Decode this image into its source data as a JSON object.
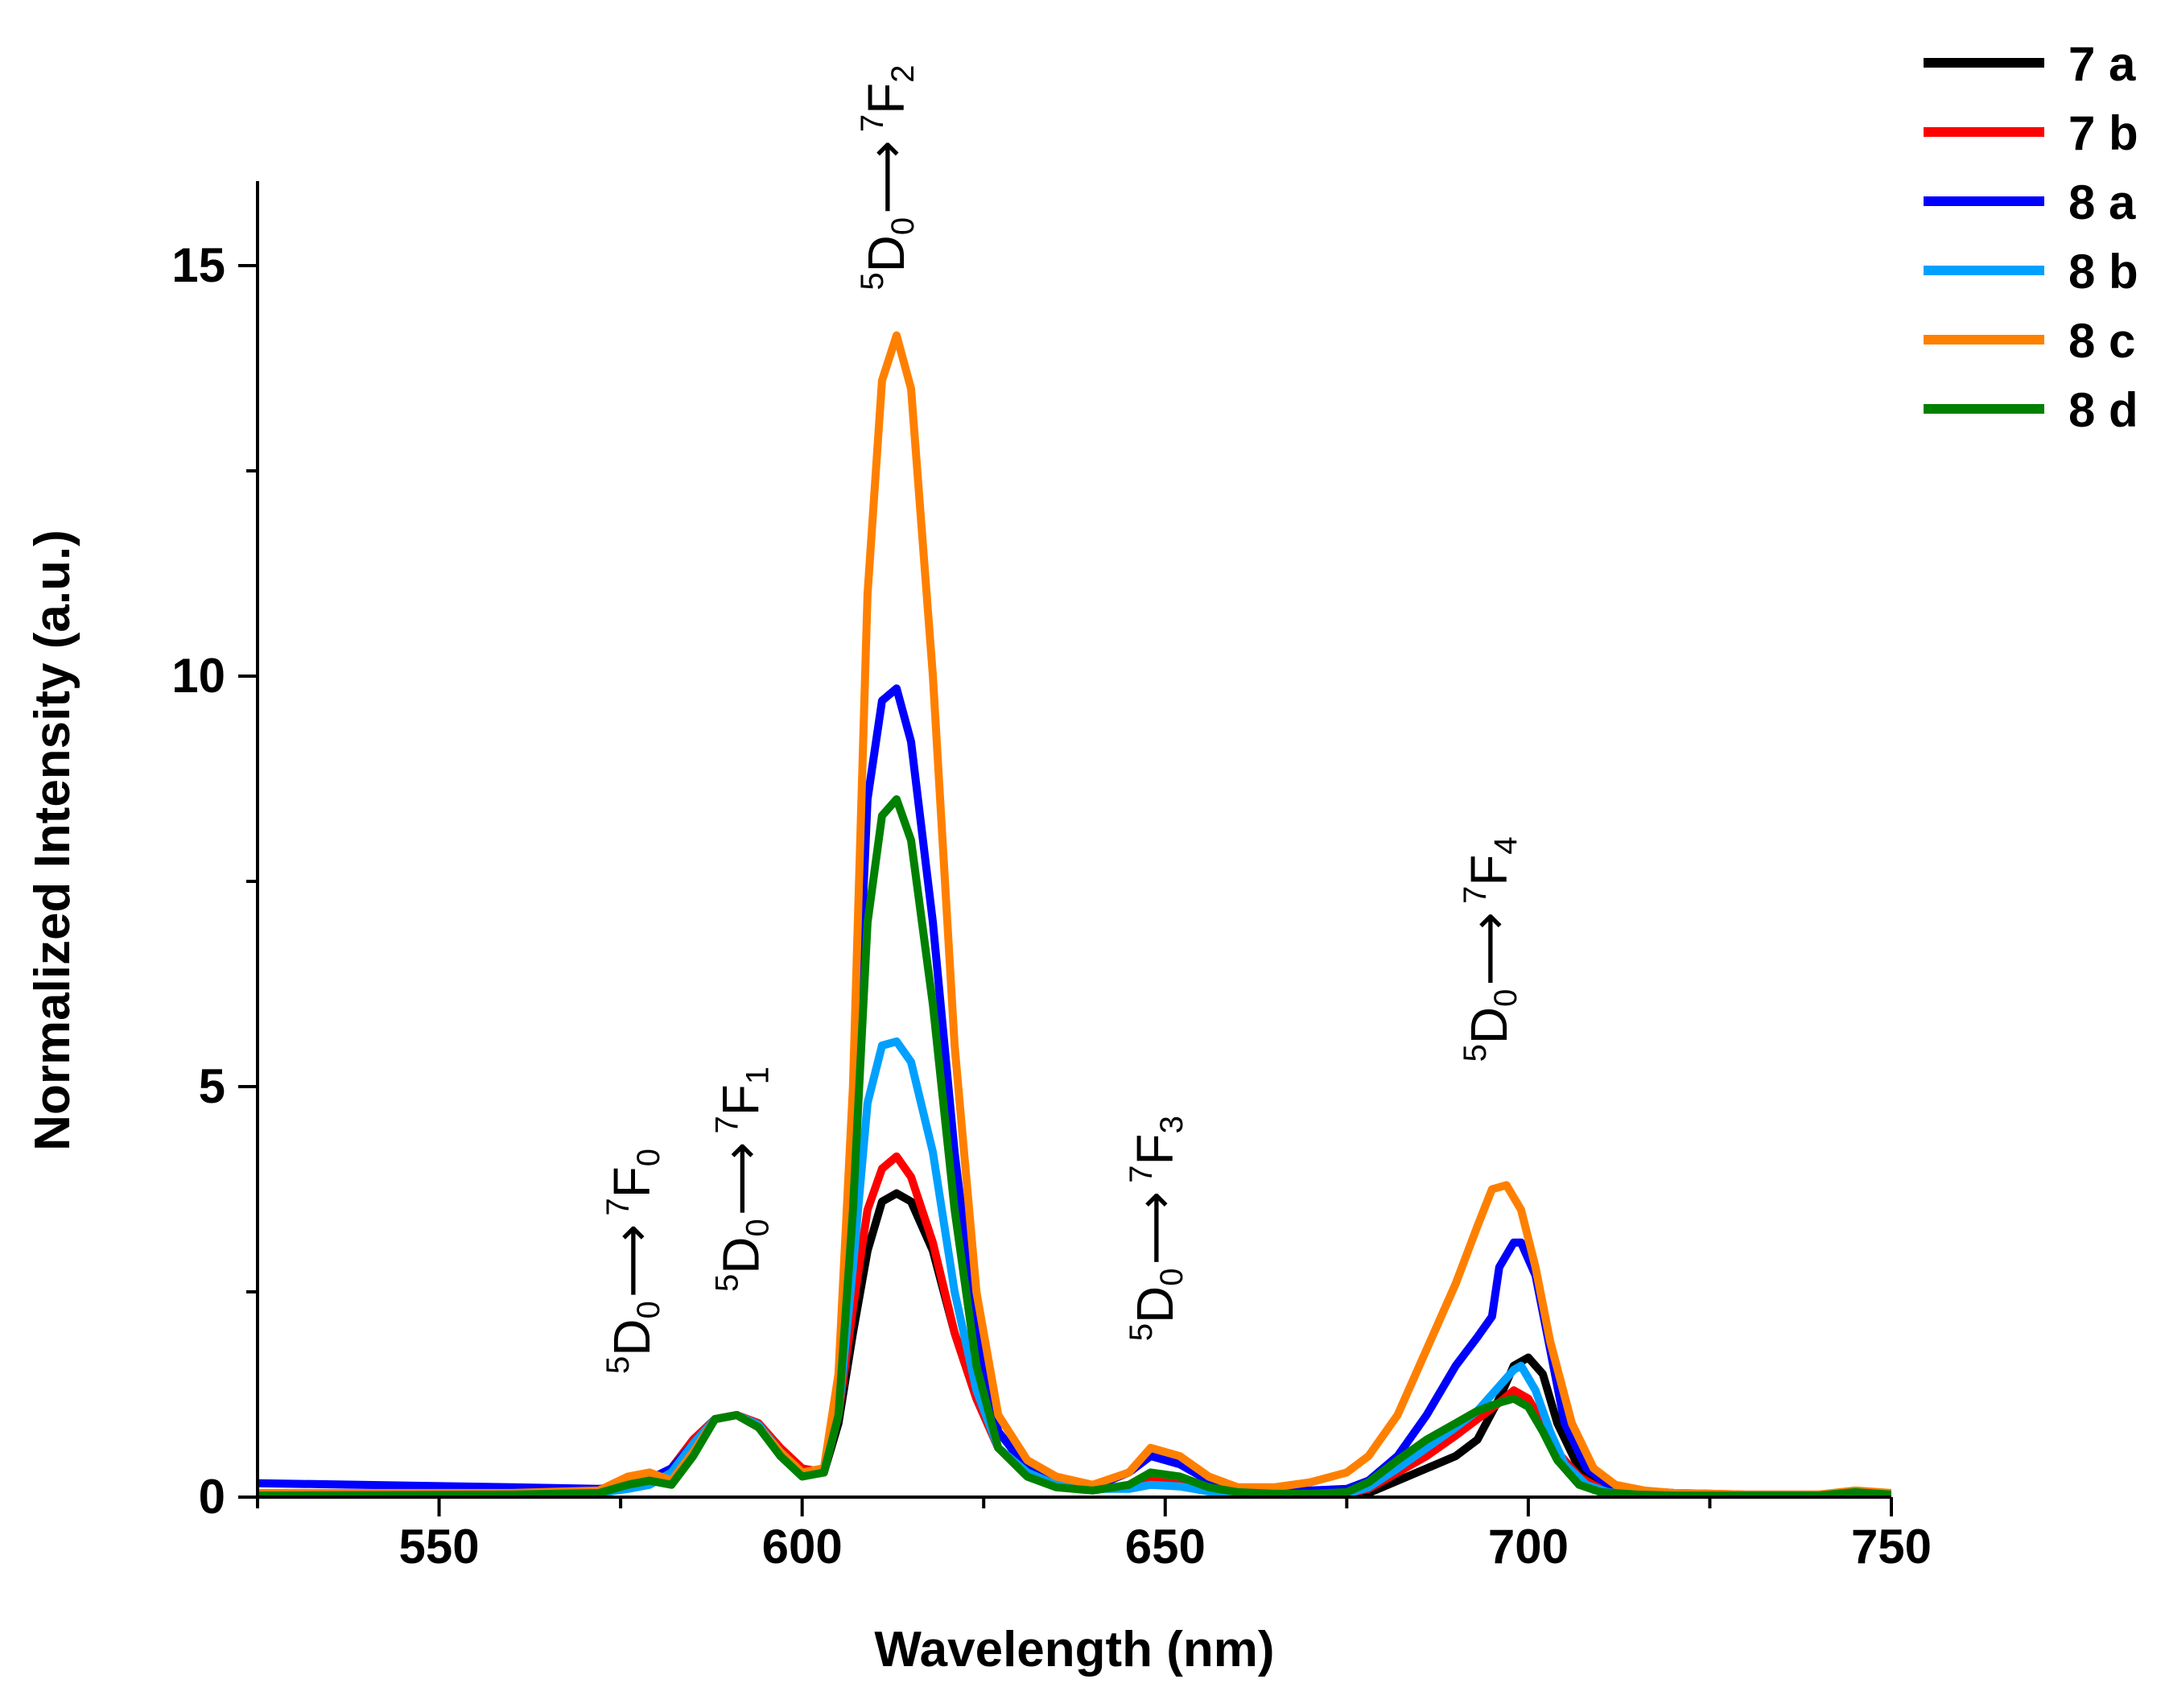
{
  "chart_data": {
    "type": "line",
    "title": "",
    "xlabel": "Wavelength (nm)",
    "ylabel": "Normalized Intensity (a.u.)",
    "xlim": [
      525,
      750
    ],
    "ylim": [
      0,
      16
    ],
    "xticks": [
      550,
      600,
      650,
      700,
      750
    ],
    "yticks": [
      0,
      5,
      10,
      15
    ],
    "x_minor_step": 25,
    "y_minor_step": 2.5,
    "grid": false,
    "legend_position": "top-right",
    "annotations": [
      {
        "id": "f0",
        "main": "D",
        "pre_sup": "5",
        "sub": "0",
        "arrow": "⟶",
        "sup2": "7",
        "main2": "F",
        "sub2": "0",
        "x": 579,
        "y": 1.5
      },
      {
        "id": "f1",
        "main": "D",
        "pre_sup": "5",
        "sub": "0",
        "arrow": "⟶",
        "sup2": "7",
        "main2": "F",
        "sub2": "1",
        "x": 594,
        "y": 2.5
      },
      {
        "id": "f2",
        "main": "D",
        "pre_sup": "5",
        "sub": "0",
        "arrow": "⟶",
        "sup2": "7",
        "main2": "F",
        "sub2": "2",
        "x": 614,
        "y": 14.7
      },
      {
        "id": "f3",
        "main": "D",
        "pre_sup": "5",
        "sub": "0",
        "arrow": "⟶",
        "sup2": "7",
        "main2": "F",
        "sub2": "3",
        "x": 651,
        "y": 1.9
      },
      {
        "id": "f4",
        "main": "D",
        "pre_sup": "5",
        "sub": "0",
        "arrow": "⟶",
        "sup2": "7",
        "main2": "F",
        "sub2": "4",
        "x": 697,
        "y": 5.3
      }
    ],
    "series": [
      {
        "name": "7 a",
        "color": "#000000",
        "x": [
          525,
          560,
          572,
          576,
          579,
          582,
          585,
          588,
          591,
          594,
          597,
          600,
          603,
          605,
          607,
          609,
          611,
          613,
          615,
          618,
          621,
          624,
          627,
          631,
          635,
          640,
          645,
          648,
          652,
          656,
          660,
          665,
          670,
          675,
          678,
          682,
          686,
          690,
          693,
          696,
          698,
          700,
          702,
          704,
          707,
          710,
          715,
          720,
          730,
          740,
          745,
          750
        ],
        "y": [
          0.02,
          0.03,
          0.05,
          0.12,
          0.2,
          0.35,
          0.7,
          0.95,
          1.0,
          0.85,
          0.55,
          0.3,
          0.3,
          0.9,
          2.0,
          3.0,
          3.6,
          3.7,
          3.6,
          3.0,
          2.0,
          1.2,
          0.6,
          0.3,
          0.15,
          0.1,
          0.12,
          0.2,
          0.15,
          0.08,
          0.05,
          0.03,
          0.03,
          0.03,
          0.05,
          0.2,
          0.35,
          0.5,
          0.7,
          1.2,
          1.6,
          1.7,
          1.5,
          0.9,
          0.35,
          0.12,
          0.05,
          0.03,
          0.02,
          0.02,
          0.06,
          0.03
        ]
      },
      {
        "name": "7 b",
        "color": "#ff0000",
        "x": [
          525,
          560,
          572,
          576,
          579,
          582,
          585,
          588,
          591,
          594,
          597,
          600,
          603,
          605,
          607,
          609,
          611,
          613,
          615,
          618,
          621,
          624,
          627,
          631,
          635,
          640,
          645,
          648,
          652,
          656,
          660,
          665,
          670,
          675,
          678,
          682,
          686,
          690,
          693,
          696,
          698,
          700,
          702,
          704,
          707,
          710,
          715,
          720,
          730,
          740,
          745,
          750
        ],
        "y": [
          0.02,
          0.03,
          0.05,
          0.12,
          0.2,
          0.35,
          0.7,
          0.95,
          1.0,
          0.9,
          0.6,
          0.35,
          0.3,
          1.0,
          2.3,
          3.5,
          4.0,
          4.15,
          3.9,
          3.1,
          2.0,
          1.2,
          0.6,
          0.3,
          0.15,
          0.1,
          0.12,
          0.2,
          0.15,
          0.08,
          0.05,
          0.03,
          0.03,
          0.04,
          0.1,
          0.3,
          0.5,
          0.75,
          0.95,
          1.15,
          1.3,
          1.2,
          0.9,
          0.55,
          0.25,
          0.1,
          0.05,
          0.03,
          0.02,
          0.02,
          0.06,
          0.03
        ]
      },
      {
        "name": "8 a",
        "color": "#0000ff",
        "x": [
          525,
          560,
          572,
          576,
          579,
          582,
          585,
          588,
          591,
          594,
          597,
          600,
          603,
          605,
          607,
          609,
          611,
          613,
          615,
          618,
          621,
          624,
          627,
          631,
          635,
          640,
          645,
          648,
          652,
          656,
          660,
          665,
          670,
          675,
          678,
          682,
          686,
          690,
          693,
          695,
          696,
          698,
          699,
          701,
          703,
          705,
          708,
          711,
          715,
          720,
          730,
          740,
          745,
          750
        ],
        "y": [
          0.17,
          0.12,
          0.1,
          0.15,
          0.22,
          0.35,
          0.65,
          0.95,
          1.0,
          0.85,
          0.55,
          0.3,
          0.35,
          1.2,
          4.5,
          8.5,
          9.7,
          9.85,
          9.2,
          7.0,
          4.2,
          2.0,
          0.8,
          0.35,
          0.18,
          0.12,
          0.3,
          0.5,
          0.4,
          0.2,
          0.1,
          0.08,
          0.08,
          0.1,
          0.2,
          0.5,
          1.0,
          1.6,
          1.95,
          2.2,
          2.8,
          3.1,
          3.1,
          2.7,
          1.8,
          0.9,
          0.35,
          0.15,
          0.08,
          0.05,
          0.03,
          0.03,
          0.06,
          0.03
        ]
      },
      {
        "name": "8 b",
        "color": "#00a0ff",
        "x": [
          525,
          560,
          572,
          576,
          579,
          582,
          585,
          588,
          591,
          594,
          597,
          600,
          603,
          605,
          607,
          609,
          611,
          613,
          615,
          618,
          621,
          624,
          627,
          631,
          635,
          640,
          645,
          648,
          652,
          656,
          660,
          665,
          670,
          675,
          678,
          682,
          686,
          690,
          693,
          696,
          698,
          699,
          701,
          703,
          705,
          708,
          711,
          715,
          720,
          730,
          740,
          745,
          750
        ],
        "y": [
          0.02,
          0.03,
          0.05,
          0.1,
          0.15,
          0.3,
          0.65,
          0.95,
          1.0,
          0.88,
          0.55,
          0.3,
          0.3,
          1.0,
          2.8,
          4.8,
          5.5,
          5.55,
          5.3,
          4.2,
          2.5,
          1.3,
          0.6,
          0.3,
          0.15,
          0.1,
          0.1,
          0.15,
          0.13,
          0.07,
          0.05,
          0.03,
          0.03,
          0.04,
          0.12,
          0.35,
          0.6,
          0.85,
          1.05,
          1.35,
          1.55,
          1.6,
          1.3,
          0.8,
          0.4,
          0.15,
          0.06,
          0.03,
          0.02,
          0.02,
          0.02,
          0.05,
          0.03
        ]
      },
      {
        "name": "8 c",
        "color": "#ff8000",
        "x": [
          525,
          560,
          572,
          576,
          579,
          582,
          585,
          588,
          591,
          594,
          597,
          600,
          603,
          605,
          607,
          609,
          611,
          613,
          615,
          618,
          621,
          624,
          627,
          631,
          635,
          640,
          645,
          648,
          652,
          656,
          660,
          665,
          670,
          675,
          678,
          682,
          686,
          690,
          693,
          695,
          697,
          699,
          701,
          703,
          706,
          709,
          712,
          716,
          720,
          730,
          740,
          745,
          750
        ],
        "y": [
          0.05,
          0.05,
          0.08,
          0.25,
          0.3,
          0.2,
          0.55,
          0.95,
          1.0,
          0.85,
          0.55,
          0.3,
          0.35,
          1.5,
          5.0,
          11.0,
          13.6,
          14.15,
          13.5,
          10.0,
          5.5,
          2.5,
          1.0,
          0.45,
          0.25,
          0.15,
          0.3,
          0.6,
          0.5,
          0.25,
          0.12,
          0.12,
          0.18,
          0.3,
          0.5,
          1.0,
          1.8,
          2.6,
          3.3,
          3.75,
          3.8,
          3.5,
          2.8,
          1.9,
          0.9,
          0.35,
          0.15,
          0.08,
          0.05,
          0.03,
          0.03,
          0.08,
          0.05
        ]
      },
      {
        "name": "8 d",
        "color": "#008000",
        "x": [
          525,
          560,
          572,
          576,
          579,
          582,
          585,
          588,
          591,
          594,
          597,
          600,
          603,
          605,
          607,
          609,
          611,
          613,
          615,
          618,
          621,
          624,
          627,
          631,
          635,
          640,
          645,
          648,
          652,
          656,
          660,
          665,
          670,
          675,
          678,
          682,
          686,
          690,
          693,
          696,
          698,
          700,
          702,
          704,
          707,
          710,
          715,
          720,
          730,
          740,
          745,
          750
        ],
        "y": [
          0.02,
          0.03,
          0.05,
          0.15,
          0.2,
          0.15,
          0.5,
          0.95,
          1.0,
          0.85,
          0.5,
          0.25,
          0.3,
          1.0,
          3.5,
          7.0,
          8.3,
          8.5,
          8.0,
          6.0,
          3.5,
          1.6,
          0.6,
          0.25,
          0.12,
          0.08,
          0.15,
          0.3,
          0.25,
          0.12,
          0.06,
          0.04,
          0.04,
          0.06,
          0.18,
          0.45,
          0.7,
          0.9,
          1.05,
          1.15,
          1.2,
          1.1,
          0.8,
          0.45,
          0.15,
          0.06,
          0.03,
          0.02,
          0.02,
          0.02,
          0.06,
          0.03
        ]
      }
    ]
  }
}
